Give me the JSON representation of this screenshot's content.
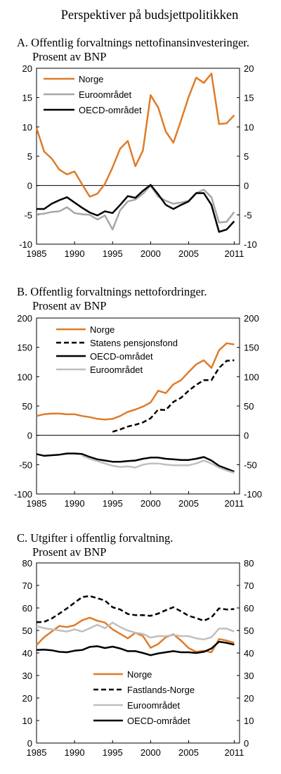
{
  "figure_title": "Perspektiver på budsjettpolitikken",
  "chart_data": [
    {
      "type": "line",
      "panel_title": "A.  Offentlig forvaltnings nettofinansinvesteringer.",
      "panel_subtitle": "Prosent av BNP",
      "ylim": [
        -10,
        20
      ],
      "yticks": [
        -10,
        -5,
        0,
        5,
        10,
        15,
        20
      ],
      "xlim": [
        1985,
        2011.7
      ],
      "xticks": [
        1985,
        1990,
        1995,
        2000,
        2005,
        2011
      ],
      "grid": false,
      "legend": "top-left",
      "series": [
        {
          "name": "Norge",
          "color": "#E07B28",
          "dash": "solid",
          "x": [
            1985,
            1986,
            1987,
            1988,
            1989,
            1990,
            1991,
            1992,
            1993,
            1994,
            1995,
            1996,
            1997,
            1998,
            1999,
            2000,
            2001,
            2002,
            2003,
            2004,
            2005,
            2006,
            2007,
            2008,
            2009,
            2010,
            2011
          ],
          "y": [
            9.8,
            5.8,
            4.6,
            2.7,
            1.9,
            2.4,
            0.2,
            -1.9,
            -1.4,
            0.3,
            3.1,
            6.3,
            7.6,
            3.3,
            6.0,
            15.4,
            13.3,
            9.2,
            7.3,
            11.1,
            15.1,
            18.4,
            17.5,
            19.1,
            10.5,
            10.6,
            12.0
          ]
        },
        {
          "name": "Euroområdet",
          "color": "#A6A6A6",
          "dash": "solid",
          "x": [
            1985,
            1986,
            1987,
            1988,
            1989,
            1990,
            1991,
            1992,
            1993,
            1994,
            1995,
            1996,
            1997,
            1998,
            1999,
            2000,
            2001,
            2002,
            2003,
            2004,
            2005,
            2006,
            2007,
            2008,
            2009,
            2010,
            2011
          ],
          "y": [
            -4.9,
            -4.8,
            -4.5,
            -4.4,
            -3.7,
            -4.7,
            -4.9,
            -5.0,
            -5.8,
            -5.1,
            -7.5,
            -4.2,
            -2.7,
            -2.4,
            -1.4,
            0.0,
            -1.9,
            -2.6,
            -3.1,
            -2.9,
            -2.6,
            -1.3,
            -0.7,
            -2.0,
            -6.3,
            -6.2,
            -4.5
          ]
        },
        {
          "name": "OECD-området",
          "color": "#000000",
          "dash": "solid",
          "x": [
            1985,
            1986,
            1987,
            1988,
            1989,
            1990,
            1991,
            1992,
            1993,
            1994,
            1995,
            1996,
            1997,
            1998,
            1999,
            2000,
            2001,
            2002,
            2003,
            2004,
            2005,
            2006,
            2007,
            2008,
            2009,
            2010,
            2011
          ],
          "y": [
            -4.0,
            -4.0,
            -3.1,
            -2.5,
            -2.0,
            -2.9,
            -3.8,
            -4.6,
            -5.1,
            -4.4,
            -4.7,
            -3.3,
            -1.8,
            -2.1,
            -0.9,
            0.1,
            -1.5,
            -3.3,
            -4.0,
            -3.3,
            -2.7,
            -1.3,
            -1.3,
            -3.3,
            -7.9,
            -7.5,
            -6.1
          ]
        }
      ]
    },
    {
      "type": "line",
      "panel_title": "B.  Offentlig forvaltnings nettofordringer.",
      "panel_subtitle": "Prosent av BNP",
      "ylim": [
        -100,
        200
      ],
      "yticks": [
        -100,
        -50,
        0,
        50,
        100,
        150,
        200
      ],
      "xlim": [
        1985,
        2011.7
      ],
      "xticks": [
        1985,
        1990,
        1995,
        2000,
        2005,
        2011
      ],
      "grid": false,
      "legend": "top-left",
      "series": [
        {
          "name": "Norge",
          "color": "#E07B28",
          "dash": "solid",
          "x": [
            1985,
            1986,
            1987,
            1988,
            1989,
            1990,
            1991,
            1992,
            1993,
            1994,
            1995,
            1996,
            1997,
            1998,
            1999,
            2000,
            2001,
            2002,
            2003,
            2004,
            2005,
            2006,
            2007,
            2008,
            2009,
            2010,
            2011
          ],
          "y": [
            33,
            36,
            37,
            37,
            36,
            36,
            33,
            31,
            28,
            27,
            28,
            33,
            40,
            44,
            49,
            56,
            76,
            72,
            87,
            94,
            108,
            121,
            128,
            115,
            145,
            157,
            155
          ]
        },
        {
          "name": "Statens pensjonsfond",
          "color": "#000000",
          "dash": "dashed",
          "x": [
            1995,
            1996,
            1997,
            1998,
            1999,
            2000,
            2001,
            2002,
            2003,
            2004,
            2005,
            2006,
            2007,
            2008,
            2009,
            2010,
            2011
          ],
          "y": [
            6,
            10,
            15,
            18,
            22,
            29,
            44,
            43,
            57,
            64,
            76,
            86,
            94,
            94,
            115,
            127,
            128
          ]
        },
        {
          "name": "OECD-området",
          "color": "#000000",
          "dash": "solid",
          "x": [
            1985,
            1986,
            1987,
            1988,
            1989,
            1990,
            1991,
            1992,
            1993,
            1994,
            1995,
            1996,
            1997,
            1998,
            1999,
            2000,
            2001,
            2002,
            2003,
            2004,
            2005,
            2006,
            2007,
            2008,
            2009,
            2010,
            2011
          ],
          "y": [
            -32,
            -35,
            -34,
            -33,
            -31,
            -31,
            -32,
            -37,
            -41,
            -43,
            -45,
            -45,
            -44,
            -43,
            -40,
            -38,
            -38,
            -40,
            -41,
            -42,
            -42,
            -40,
            -37,
            -43,
            -52,
            -57,
            -62
          ]
        },
        {
          "name": "Euroområdet",
          "color": "#BFBFBF",
          "dash": "solid",
          "x": [
            1991,
            1992,
            1993,
            1994,
            1995,
            1996,
            1997,
            1998,
            1999,
            2000,
            2001,
            2002,
            2003,
            2004,
            2005,
            2006,
            2007,
            2008,
            2009,
            2010,
            2011
          ],
          "y": [
            -35,
            -40,
            -44,
            -48,
            -52,
            -54,
            -53,
            -55,
            -50,
            -48,
            -48,
            -50,
            -51,
            -51,
            -51,
            -48,
            -43,
            -48,
            -55,
            -60,
            -64
          ]
        }
      ]
    },
    {
      "type": "line",
      "panel_title": "C.  Utgifter i offentlig forvaltning.",
      "panel_subtitle": "Prosent av BNP",
      "ylim": [
        0,
        80
      ],
      "yticks": [
        0,
        10,
        20,
        30,
        40,
        50,
        60,
        70,
        80
      ],
      "xlim": [
        1985,
        2011.7
      ],
      "xticks": [
        1985,
        1990,
        1995,
        2000,
        2005,
        2011
      ],
      "grid": false,
      "legend": "bottom-center",
      "series": [
        {
          "name": "Norge",
          "color": "#E07B28",
          "dash": "solid",
          "x": [
            1985,
            1986,
            1987,
            1988,
            1989,
            1990,
            1991,
            1992,
            1993,
            1994,
            1995,
            1996,
            1997,
            1998,
            1999,
            2000,
            2001,
            2002,
            2003,
            2004,
            2005,
            2006,
            2007,
            2008,
            2009,
            2010,
            2011
          ],
          "y": [
            43.5,
            47,
            49.5,
            52,
            51.5,
            52.3,
            54.5,
            55.7,
            54.3,
            53.5,
            50.5,
            48.5,
            46.5,
            49,
            47.5,
            42.3,
            44,
            47,
            48.3,
            45.5,
            42.2,
            40.5,
            41,
            40.3,
            46.2,
            45.5,
            44.5
          ]
        },
        {
          "name": "Fastlands-Norge",
          "color": "#000000",
          "dash": "dashed",
          "x": [
            1985,
            1986,
            1987,
            1988,
            1989,
            1990,
            1991,
            1992,
            1993,
            1994,
            1995,
            1996,
            1997,
            1998,
            1999,
            2000,
            2001,
            2002,
            2003,
            2004,
            2005,
            2006,
            2007,
            2008,
            2009,
            2010,
            2011
          ],
          "y": [
            53.7,
            53.8,
            55.3,
            57.5,
            59.8,
            62.3,
            64.8,
            65.3,
            64.3,
            63.3,
            60.3,
            59.3,
            57.3,
            56.8,
            56.8,
            56.5,
            57.5,
            59,
            60.3,
            58.5,
            56.5,
            55.5,
            54.3,
            55.8,
            59.8,
            59.3,
            59.5
          ]
        },
        {
          "name": "Euroområdet",
          "color": "#BFBFBF",
          "dash": "solid",
          "x": [
            1985,
            1986,
            1987,
            1988,
            1989,
            1990,
            1991,
            1992,
            1993,
            1994,
            1995,
            1996,
            1997,
            1998,
            1999,
            2000,
            2001,
            2002,
            2003,
            2004,
            2005,
            2006,
            2007,
            2008,
            2009,
            2010,
            2011
          ],
          "y": [
            52,
            51,
            50.5,
            50,
            49.5,
            50.5,
            49.5,
            51,
            52.5,
            51,
            53.5,
            51.5,
            50,
            49,
            48.5,
            46.8,
            47.5,
            47.5,
            48,
            47.5,
            47.5,
            46.5,
            46,
            47,
            50.8,
            50.8,
            49.5
          ]
        },
        {
          "name": "OECD-området",
          "color": "#000000",
          "dash": "solid",
          "x": [
            1985,
            1986,
            1987,
            1988,
            1989,
            1990,
            1991,
            1992,
            1993,
            1994,
            1995,
            1996,
            1997,
            1998,
            1999,
            2000,
            2001,
            2002,
            2003,
            2004,
            2005,
            2006,
            2007,
            2008,
            2009,
            2010,
            2011
          ],
          "y": [
            41.3,
            41.5,
            41.2,
            40.5,
            40.3,
            41,
            41.3,
            42.7,
            43,
            42.2,
            42.8,
            42,
            40.8,
            40.8,
            40,
            39,
            39.8,
            40.3,
            40.8,
            40.3,
            40.3,
            40,
            40.5,
            42,
            45,
            44.5,
            43.7
          ]
        }
      ]
    }
  ]
}
